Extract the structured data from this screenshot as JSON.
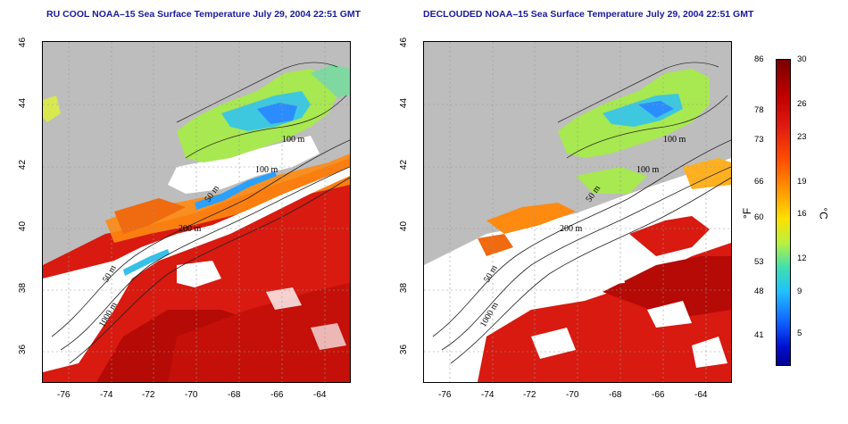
{
  "left_panel": {
    "title": "RU COOL NOAA–15 Sea Surface Temperature July 29, 2004 22:51 GMT",
    "contour_labels": [
      "100 m",
      "100 m",
      "50 m",
      "200 m",
      "50 m",
      "1000 m"
    ]
  },
  "right_panel": {
    "title": "DECLOUDED NOAA–15 Sea Surface Temperature July 29, 2004 22:51 GMT",
    "contour_labels": [
      "100 m",
      "100 m",
      "50 m",
      "200 m",
      "50 m",
      "1000 m"
    ]
  },
  "axes": {
    "lat_ticks": [
      "46",
      "44",
      "42",
      "40",
      "38",
      "36"
    ],
    "lon_ticks": [
      "-76",
      "-74",
      "-72",
      "-70",
      "-68",
      "-66",
      "-64"
    ]
  },
  "colorbar": {
    "fahrenheit_ticks": [
      "86",
      "78",
      "73",
      "66",
      "60",
      "53",
      "48",
      "41"
    ],
    "celsius_ticks": [
      "30",
      "26",
      "23",
      "19",
      "16",
      "12",
      "9",
      "5"
    ],
    "fahrenheit_unit": "°F",
    "celsius_unit": "°C"
  },
  "colors": {
    "title": "#1a1a9c",
    "land": "#bdbdbd",
    "cloud": "#ffffff",
    "warm": "#d81a10",
    "hot": "#b00000",
    "mid": "#ff8a10",
    "cool": "#a8e850",
    "cold": "#2aa0ff"
  }
}
